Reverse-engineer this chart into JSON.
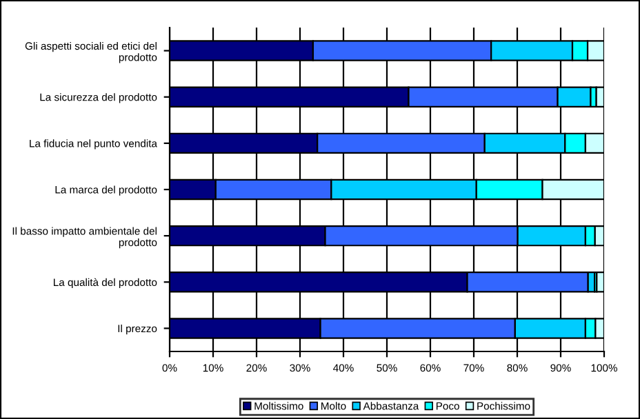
{
  "chart_data": {
    "type": "bar",
    "orientation": "horizontal",
    "stacked": true,
    "categories": [
      "Gli aspetti sociali ed etici del prodotto",
      "La sicurezza del prodotto",
      "La fiducia nel punto vendita",
      "La marca del prodotto",
      "Il basso impatto ambientale del prodotto",
      "La qualità del prodotto",
      "Il prezzo"
    ],
    "series": [
      {
        "name": "Moltissimo",
        "color": "#000080",
        "values": [
          33,
          55,
          34,
          10.6,
          35.8,
          68.5,
          34.7
        ]
      },
      {
        "name": "Molto",
        "color": "#3366ff",
        "values": [
          41,
          34.3,
          38.5,
          26.6,
          44.3,
          27.8,
          44.8
        ]
      },
      {
        "name": "Abbastanza",
        "color": "#00ccff",
        "values": [
          18.7,
          7.6,
          18.5,
          33.4,
          15.6,
          1.5,
          16.2
        ]
      },
      {
        "name": "Poco",
        "color": "#00ffff",
        "values": [
          3.5,
          1.3,
          4.7,
          15.2,
          2.2,
          0.5,
          2.3
        ]
      },
      {
        "name": "Pochissimo",
        "color": "#ccffff",
        "values": [
          3.8,
          1.8,
          4.3,
          14.2,
          2.1,
          1.7,
          2.0
        ]
      }
    ],
    "xlim": [
      0,
      100
    ],
    "xticks": [
      {
        "value": 0,
        "label": "0%"
      },
      {
        "value": 10,
        "label": "10%"
      },
      {
        "value": 20,
        "label": "20%"
      },
      {
        "value": 30,
        "label": "30%"
      },
      {
        "value": 40,
        "label": "40%"
      },
      {
        "value": 50,
        "label": "50%"
      },
      {
        "value": 60,
        "label": "60%"
      },
      {
        "value": 70,
        "label": "70%"
      },
      {
        "value": 80,
        "label": "80%"
      },
      {
        "value": 90,
        "label": "90%"
      },
      {
        "value": 100,
        "label": "100%"
      }
    ],
    "grid": "x",
    "legend": "bottom"
  }
}
